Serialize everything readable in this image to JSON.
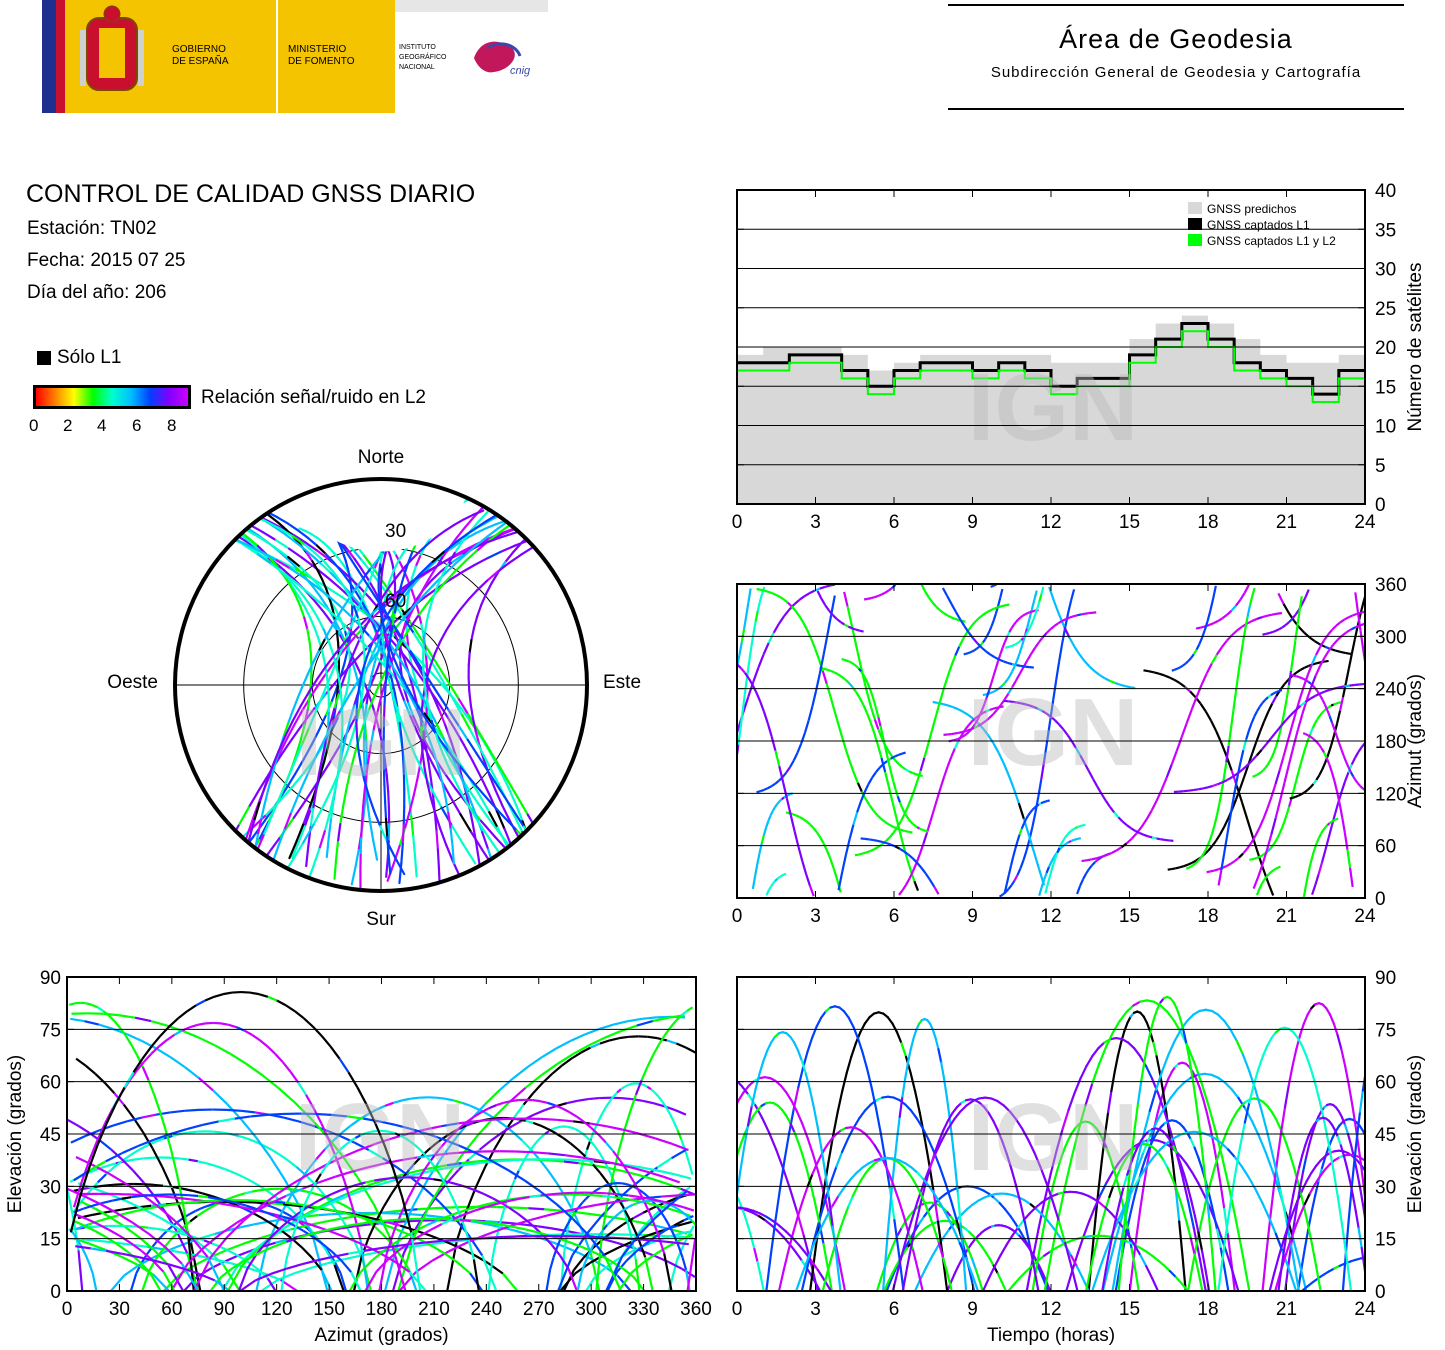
{
  "header": {
    "gov_line1": "GOBIERNO",
    "gov_line2": "DE ESPAÑA",
    "min_line1": "MINISTERIO",
    "min_line2": "DE FOMENTO",
    "inst_line1": "INSTITUTO",
    "inst_line2": "GEOGRÁFICO",
    "inst_line3": "NACIONAL",
    "cnig": "cnig",
    "area_title": "Área de Geodesia",
    "area_subtitle": "Subdirección General de Geodesia y Cartografía"
  },
  "info": {
    "title": "CONTROL DE CALIDAD GNSS DIARIO",
    "station": "Estación: TN02",
    "date": "Fecha: 2015 07 25",
    "doy": "Día del año: 206"
  },
  "legend": {
    "l1_only": "Sólo L1",
    "snr_label": "Relación señal/ruido en L2",
    "snr_ticks": [
      "0",
      "2",
      "4",
      "6",
      "8"
    ]
  },
  "colors": {
    "l1_only": "#000000",
    "predicted": "#d8d8d8",
    "l1l2": "#00ff00",
    "snr_scale": [
      "#ff0000",
      "#ff8000",
      "#ffff00",
      "#00ff00",
      "#00ffcc",
      "#00bfff",
      "#0040ff",
      "#8000ff",
      "#cc00ff"
    ]
  },
  "watermark": "IGN",
  "chart_data": [
    {
      "type": "area",
      "id": "satellite-count",
      "ylabel": "Número de satélites",
      "x_ticks": [
        "0",
        "3",
        "6",
        "9",
        "12",
        "15",
        "18",
        "21",
        "24"
      ],
      "y_ticks": [
        "0",
        "5",
        "10",
        "15",
        "20",
        "25",
        "30",
        "35",
        "40"
      ],
      "xlim": [
        0,
        24
      ],
      "ylim": [
        0,
        40
      ],
      "legend_position": "top-right",
      "series": [
        {
          "name": "GNSS predichos",
          "color": "#d8d8d8",
          "x": [
            0,
            1,
            2,
            3,
            4,
            5,
            6,
            7,
            8,
            9,
            10,
            11,
            12,
            13,
            14,
            15,
            16,
            17,
            18,
            19,
            20,
            21,
            22,
            23,
            24
          ],
          "values": [
            19,
            20,
            20,
            20,
            19,
            17,
            18,
            19,
            19,
            19,
            19,
            19,
            18,
            18,
            18,
            21,
            23,
            24,
            23,
            21,
            19,
            18,
            18,
            19,
            19
          ]
        },
        {
          "name": "GNSS captados L1",
          "color": "#000000",
          "x": [
            0,
            1,
            2,
            3,
            4,
            5,
            6,
            7,
            8,
            9,
            10,
            11,
            12,
            13,
            14,
            15,
            16,
            17,
            18,
            19,
            20,
            21,
            22,
            23,
            24
          ],
          "values": [
            18,
            18,
            19,
            19,
            17,
            15,
            17,
            18,
            18,
            17,
            18,
            17,
            15,
            16,
            16,
            19,
            21,
            23,
            21,
            18,
            17,
            16,
            14,
            17,
            17
          ]
        },
        {
          "name": "GNSS captados L1 y L2",
          "color": "#00ff00",
          "x": [
            0,
            1,
            2,
            3,
            4,
            5,
            6,
            7,
            8,
            9,
            10,
            11,
            12,
            13,
            14,
            15,
            16,
            17,
            18,
            19,
            20,
            21,
            22,
            23,
            24
          ],
          "values": [
            17,
            17,
            18,
            18,
            16,
            14,
            16,
            17,
            17,
            16,
            17,
            16,
            14,
            15,
            15,
            18,
            20,
            22,
            20,
            17,
            16,
            15,
            13,
            16,
            16
          ]
        }
      ]
    },
    {
      "type": "scatter",
      "id": "azimuth-time",
      "ylabel": "Azimut (grados)",
      "x_ticks": [
        "0",
        "3",
        "6",
        "9",
        "12",
        "15",
        "18",
        "21",
        "24"
      ],
      "y_ticks": [
        "0",
        "60",
        "120",
        "180",
        "240",
        "300",
        "360"
      ],
      "xlim": [
        0,
        24
      ],
      "ylim": [
        0,
        360
      ],
      "grid": true
    },
    {
      "type": "scatter",
      "id": "elevation-azimuth",
      "xlabel": "Azimut (grados)",
      "ylabel": "Elevación (grados)",
      "x_ticks": [
        "0",
        "30",
        "60",
        "90",
        "120",
        "150",
        "180",
        "210",
        "240",
        "270",
        "300",
        "330",
        "360"
      ],
      "y_ticks": [
        "0",
        "15",
        "30",
        "45",
        "60",
        "75",
        "90"
      ],
      "xlim": [
        0,
        360
      ],
      "ylim": [
        0,
        90
      ],
      "grid": true
    },
    {
      "type": "scatter",
      "id": "elevation-time",
      "xlabel": "Tiempo (horas)",
      "ylabel": "Elevación (grados)",
      "x_ticks": [
        "0",
        "3",
        "6",
        "9",
        "12",
        "15",
        "18",
        "21",
        "24"
      ],
      "y_ticks": [
        "0",
        "15",
        "30",
        "45",
        "60",
        "75",
        "90"
      ],
      "xlim": [
        0,
        24
      ],
      "ylim": [
        0,
        90
      ],
      "grid": true
    },
    {
      "type": "scatter",
      "id": "skyplot",
      "directions": {
        "north": "Norte",
        "south": "Sur",
        "east": "Este",
        "west": "Oeste"
      },
      "elevation_rings": [
        "30",
        "60"
      ]
    }
  ]
}
